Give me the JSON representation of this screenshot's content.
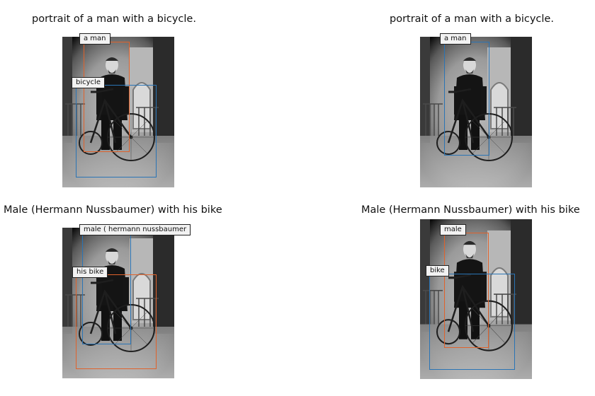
{
  "colors": {
    "blue": "#2a74b5",
    "orange": "#e0622b"
  },
  "panels": [
    {
      "caption": "portrait of a man with a bicycle.",
      "labels": {
        "first": "a man",
        "second": "bicycle"
      }
    },
    {
      "caption": "portrait of a man with a bicycle.",
      "labels": {
        "first": "a man"
      }
    },
    {
      "caption": "Male (Hermann Nussbaumer) with his bike",
      "labels": {
        "first": "male ( hermann nussbaumer",
        "second": "his bike"
      }
    },
    {
      "caption": "Male (Hermann Nussbaumer) with his bike",
      "labels": {
        "first": "male",
        "second": "bike"
      }
    }
  ]
}
